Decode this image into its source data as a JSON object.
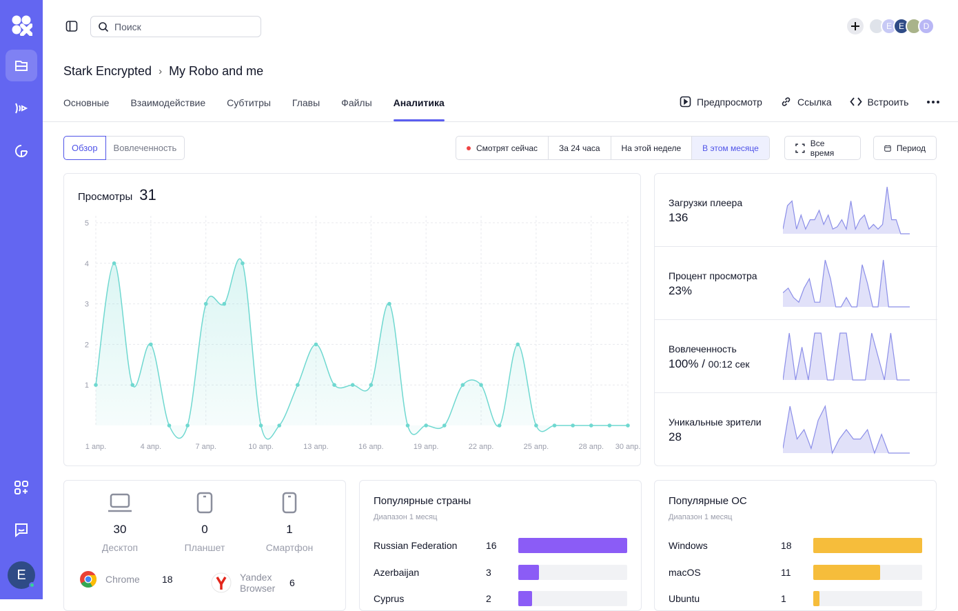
{
  "search": {
    "placeholder": "Поиск"
  },
  "avatars": [
    "",
    "E",
    "E",
    "",
    "D"
  ],
  "user": {
    "initial": "E"
  },
  "breadcrumb": {
    "parent": "Stark Encrypted",
    "current": "My Robo and me"
  },
  "tabs": [
    "Основные",
    "Взаимодействие",
    "Субтитры",
    "Главы",
    "Файлы",
    "Аналитика"
  ],
  "active_tab": "Аналитика",
  "actions": {
    "preview": "Предпросмотр",
    "link": "Ссылка",
    "embed": "Встроить"
  },
  "view_toggle": {
    "overview": "Обзор",
    "engagement": "Вовлеченность"
  },
  "ranges": {
    "live": "Смотрят сейчас",
    "day": "За 24 часа",
    "week": "На этой неделе",
    "month": "В этом месяце",
    "all": "Все время",
    "period": "Период"
  },
  "views": {
    "title": "Просмотры",
    "total": "31"
  },
  "chart_data": {
    "type": "area",
    "title": "Просмотры",
    "ylim": [
      0,
      5
    ],
    "yticks": [
      "1",
      "2",
      "3",
      "4",
      "5"
    ],
    "x": [
      "1 апр.",
      "2 апр.",
      "3 апр.",
      "4 апр.",
      "5 апр.",
      "6 апр.",
      "7 апр.",
      "8 апр.",
      "9 апр.",
      "10 апр.",
      "11 апр.",
      "12 апр.",
      "13 апр.",
      "14 апр.",
      "15 апр.",
      "16 апр.",
      "17 апр.",
      "18 апр.",
      "19 апр.",
      "20 апр.",
      "21 апр.",
      "22 апр.",
      "23 апр.",
      "24 апр.",
      "25 апр.",
      "26 апр.",
      "27 апр.",
      "28 апр.",
      "29 апр.",
      "30 апр."
    ],
    "xtick_labels": [
      "1 апр.",
      "4 апр.",
      "7 апр.",
      "10 апр.",
      "13 апр.",
      "16 апр.",
      "19 апр.",
      "22 апр.",
      "25 апр.",
      "28 апр.",
      "30 апр."
    ],
    "series": [
      {
        "values": [
          1,
          4,
          1,
          2,
          0,
          0,
          3,
          3,
          4,
          0,
          0,
          1,
          2,
          1,
          1,
          1,
          3,
          0,
          0,
          0,
          1,
          1,
          0,
          2,
          0,
          0,
          0,
          0,
          0,
          0
        ]
      }
    ],
    "grid": true,
    "color": "#6fd8d0"
  },
  "stats": [
    {
      "label": "Загрузки плеера",
      "value": "136",
      "sub": "",
      "spark": [
        0.1,
        0.6,
        0.7,
        0.1,
        0.4,
        0.1,
        0.3,
        0.3,
        0.5,
        0.2,
        0.4,
        0.1,
        0.15,
        0.3,
        0.1,
        0.7,
        0.1,
        0.3,
        0.4,
        0.1,
        0.2,
        0.1,
        0.2,
        1.0,
        0.3,
        0.3,
        0.0,
        0.0,
        0.0
      ]
    },
    {
      "label": "Процент просмотра",
      "value": "23%",
      "sub": "",
      "spark": [
        0.3,
        0.4,
        0.2,
        0.1,
        0.4,
        0.6,
        0.1,
        0.1,
        1.0,
        0.6,
        0.0,
        0.0,
        0.2,
        0.0,
        0.0,
        0.9,
        0.5,
        0.0,
        0.0,
        1.0,
        0.0,
        0.0,
        0.0,
        0.0,
        0.0
      ]
    },
    {
      "label": "Вовлеченность",
      "value": "100% /",
      "sub": "00:12 сек",
      "spark": [
        0.0,
        1.0,
        0.0,
        0.7,
        0.0,
        1.0,
        1.0,
        0.0,
        0.0,
        1.0,
        1.0,
        0.0,
        0.0,
        0.0,
        1.0,
        0.5,
        0.0,
        1.0,
        0.0,
        0.0,
        0.0
      ]
    },
    {
      "label": "Уникальные зрители",
      "value": "28",
      "sub": "",
      "spark": [
        0.1,
        1.0,
        0.3,
        0.5,
        0.1,
        0.7,
        1.0,
        0.0,
        0.3,
        0.5,
        0.3,
        0.3,
        0.5,
        0.0,
        0.4,
        0.0,
        0.0,
        0.0,
        0.0
      ]
    }
  ],
  "devices": [
    {
      "name": "Десктоп",
      "count": "30",
      "icon": "laptop-icon"
    },
    {
      "name": "Планшет",
      "count": "0",
      "icon": "tablet-icon"
    },
    {
      "name": "Смартфон",
      "count": "1",
      "icon": "smartphone-icon"
    }
  ],
  "browsers": [
    {
      "name": "Chrome",
      "count": "18",
      "icon": "chrome-icon"
    },
    {
      "name": "Yandex Browser",
      "count": "6",
      "icon": "yandex-icon"
    }
  ],
  "countries": {
    "title": "Популярные страны",
    "range": "Диапазон 1 месяц",
    "max": 16,
    "color": "#8b5cf6",
    "rows": [
      {
        "name": "Russian Federation",
        "count": 16
      },
      {
        "name": "Azerbaijan",
        "count": 3
      },
      {
        "name": "Cyprus",
        "count": 2
      }
    ]
  },
  "os": {
    "title": "Популярные ОС",
    "range": "Диапазон 1 месяц",
    "max": 18,
    "color": "#f6bd3b",
    "rows": [
      {
        "name": "Windows",
        "count": 18
      },
      {
        "name": "macOS",
        "count": 11
      },
      {
        "name": "Ubuntu",
        "count": 1
      }
    ]
  }
}
